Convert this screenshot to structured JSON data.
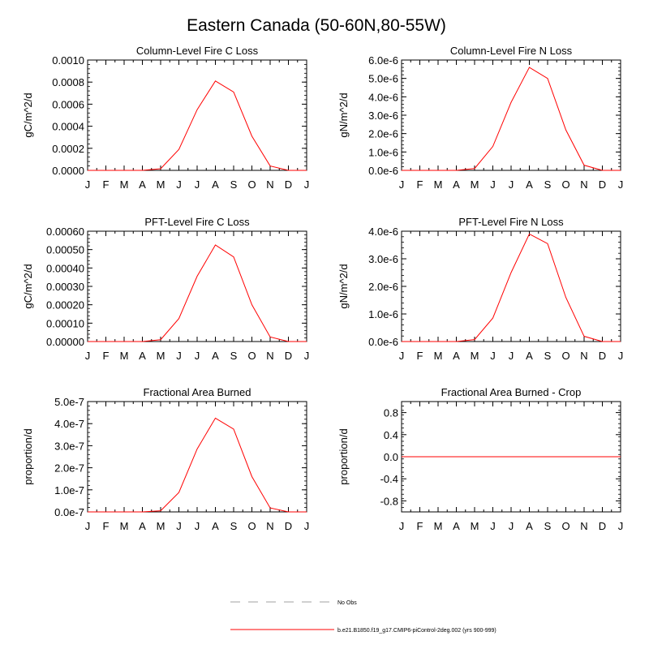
{
  "title": "Eastern Canada (50-60N,80-55W)",
  "colors": {
    "model": "#ff0000",
    "obs": "#a0a0a0",
    "axis": "#000000"
  },
  "chart_data": [
    {
      "type": "line",
      "title": "Column-Level Fire C Loss",
      "ylabel": "gC/m^2/d",
      "categories": [
        "J",
        "F",
        "M",
        "A",
        "M",
        "J",
        "J",
        "A",
        "S",
        "O",
        "N",
        "D",
        "J"
      ],
      "ylim": [
        0,
        0.001
      ],
      "yticks": [
        0,
        0.0002,
        0.0004,
        0.0006,
        0.0008,
        0.001
      ],
      "ytick_labels": [
        "0.0000",
        "0.0002",
        "0.0004",
        "0.0006",
        "0.0008",
        "0.0010"
      ],
      "series": [
        {
          "name": "b.e21.B1850.f19_g17.CMIP6-piControl-2deg.002 (yrs 900-999)",
          "values": [
            0,
            0,
            0,
            0,
            1.5e-05,
            0.00019,
            0.00055,
            0.00081,
            0.00071,
            0.00031,
            4e-05,
            0,
            0
          ]
        }
      ]
    },
    {
      "type": "line",
      "title": "Column-Level Fire N Loss",
      "ylabel": "gN/m^2/d",
      "categories": [
        "J",
        "F",
        "M",
        "A",
        "M",
        "J",
        "J",
        "A",
        "S",
        "O",
        "N",
        "D",
        "J"
      ],
      "ylim": [
        0,
        6e-06
      ],
      "yticks": [
        0,
        1e-06,
        2e-06,
        3e-06,
        4e-06,
        5e-06,
        6e-06
      ],
      "ytick_labels": [
        "0.0e-6",
        "1.0e-6",
        "2.0e-6",
        "3.0e-6",
        "4.0e-6",
        "5.0e-6",
        "6.0e-6"
      ],
      "series": [
        {
          "name": "b.e21.B1850.f19_g17.CMIP6-piControl-2deg.002 (yrs 900-999)",
          "values": [
            0,
            0,
            0,
            0,
            1e-07,
            1.3e-06,
            3.7e-06,
            5.6e-06,
            5e-06,
            2.2e-06,
            2.8e-07,
            0,
            0
          ]
        }
      ]
    },
    {
      "type": "line",
      "title": "PFT-Level Fire C Loss",
      "ylabel": "gC/m^2/d",
      "categories": [
        "J",
        "F",
        "M",
        "A",
        "M",
        "J",
        "J",
        "A",
        "S",
        "O",
        "N",
        "D",
        "J"
      ],
      "ylim": [
        0,
        0.0006
      ],
      "yticks": [
        0,
        0.0001,
        0.0002,
        0.0003,
        0.0004,
        0.0005,
        0.0006
      ],
      "ytick_labels": [
        "0.00000",
        "0.00010",
        "0.00020",
        "0.00030",
        "0.00040",
        "0.00050",
        "0.00060"
      ],
      "series": [
        {
          "name": "b.e21.B1850.f19_g17.CMIP6-piControl-2deg.002 (yrs 900-999)",
          "values": [
            0,
            0,
            0,
            0,
            1e-05,
            0.000125,
            0.000355,
            0.000525,
            0.00046,
            0.0002,
            2.5e-05,
            0,
            0
          ]
        }
      ]
    },
    {
      "type": "line",
      "title": "PFT-Level Fire N Loss",
      "ylabel": "gN/m^2/d",
      "categories": [
        "J",
        "F",
        "M",
        "A",
        "M",
        "J",
        "J",
        "A",
        "S",
        "O",
        "N",
        "D",
        "J"
      ],
      "ylim": [
        0,
        4e-06
      ],
      "yticks": [
        0,
        1e-06,
        2e-06,
        3e-06,
        4e-06
      ],
      "ytick_labels": [
        "0.0e-6",
        "1.0e-6",
        "2.0e-6",
        "3.0e-6",
        "4.0e-6"
      ],
      "series": [
        {
          "name": "b.e21.B1850.f19_g17.CMIP6-piControl-2deg.002 (yrs 900-999)",
          "values": [
            0,
            0,
            0,
            0,
            7e-08,
            8.5e-07,
            2.5e-06,
            3.9e-06,
            3.55e-06,
            1.6e-06,
            1.9e-07,
            0,
            0
          ]
        }
      ]
    },
    {
      "type": "line",
      "title": "Fractional Area Burned",
      "ylabel": "proportion/d",
      "categories": [
        "J",
        "F",
        "M",
        "A",
        "M",
        "J",
        "J",
        "A",
        "S",
        "O",
        "N",
        "D",
        "J"
      ],
      "ylim": [
        0,
        5e-07
      ],
      "yticks": [
        0,
        1e-07,
        2e-07,
        3e-07,
        4e-07,
        5e-07
      ],
      "ytick_labels": [
        "0.0e-7",
        "1.0e-7",
        "2.0e-7",
        "3.0e-7",
        "4.0e-7",
        "5.0e-7"
      ],
      "series": [
        {
          "name": "b.e21.B1850.f19_g17.CMIP6-piControl-2deg.002 (yrs 900-999)",
          "values": [
            0,
            0,
            0,
            0,
            5e-09,
            8.8e-08,
            2.85e-07,
            4.25e-07,
            3.75e-07,
            1.6e-07,
            1.8e-08,
            0,
            0
          ]
        }
      ]
    },
    {
      "type": "line",
      "title": "Fractional Area Burned - Crop",
      "ylabel": "proportion/d",
      "categories": [
        "J",
        "F",
        "M",
        "A",
        "M",
        "J",
        "J",
        "A",
        "S",
        "O",
        "N",
        "D",
        "J"
      ],
      "ylim": [
        -1,
        1
      ],
      "yticks": [
        -0.8,
        -0.4,
        0,
        0.4,
        0.8
      ],
      "ytick_labels": [
        "-0.8",
        "-0.4",
        "0.0",
        "0.4",
        "0.8"
      ],
      "series": [
        {
          "name": "b.e21.B1850.f19_g17.CMIP6-piControl-2deg.002 (yrs 900-999)",
          "values": [
            0,
            0,
            0,
            0,
            0,
            0,
            0,
            0,
            0,
            0,
            0,
            0,
            0
          ]
        }
      ]
    }
  ],
  "legend": [
    {
      "label": "No Obs",
      "style": "dashed",
      "color_key": "obs"
    },
    {
      "label": "b.e21.B1850.f19_g17.CMIP6-piControl-2deg.002 (yrs 900-999)",
      "style": "solid",
      "color_key": "model"
    }
  ]
}
